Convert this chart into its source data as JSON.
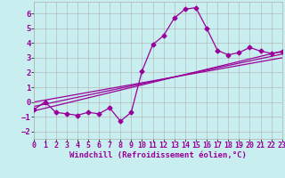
{
  "background_color": "#c8eef0",
  "line_color": "#990099",
  "grid_color": "#b0b0b0",
  "xlabel": "Windchill (Refroidissement éolien,°C)",
  "xlabel_fontsize": 6.5,
  "ytick_fontsize": 6.5,
  "xtick_fontsize": 6.0,
  "xlim": [
    0,
    23
  ],
  "ylim": [
    -2.5,
    6.8
  ],
  "xticks": [
    0,
    1,
    2,
    3,
    4,
    5,
    6,
    7,
    8,
    9,
    10,
    11,
    12,
    13,
    14,
    15,
    16,
    17,
    18,
    19,
    20,
    21,
    22,
    23
  ],
  "yticks": [
    -2,
    -1,
    0,
    1,
    2,
    3,
    4,
    5,
    6
  ],
  "data_x": [
    0,
    1,
    2,
    3,
    4,
    5,
    6,
    7,
    8,
    9,
    10,
    11,
    12,
    13,
    14,
    15,
    16,
    17,
    18,
    19,
    20,
    21,
    22,
    23
  ],
  "data_y": [
    -0.5,
    0.0,
    -0.7,
    -0.8,
    -0.9,
    -0.7,
    -0.8,
    -0.4,
    -1.3,
    -0.7,
    2.1,
    3.9,
    4.5,
    5.7,
    6.3,
    6.4,
    5.0,
    3.5,
    3.2,
    3.35,
    3.7,
    3.45,
    3.3,
    3.4
  ],
  "line1_x": [
    0,
    23
  ],
  "line1_y": [
    -0.6,
    3.45
  ],
  "line2_x": [
    0,
    23
  ],
  "line2_y": [
    -0.3,
    3.25
  ],
  "line3_x": [
    0,
    23
  ],
  "line3_y": [
    0.0,
    3.0
  ],
  "marker_size": 2.5,
  "line_width": 0.9
}
